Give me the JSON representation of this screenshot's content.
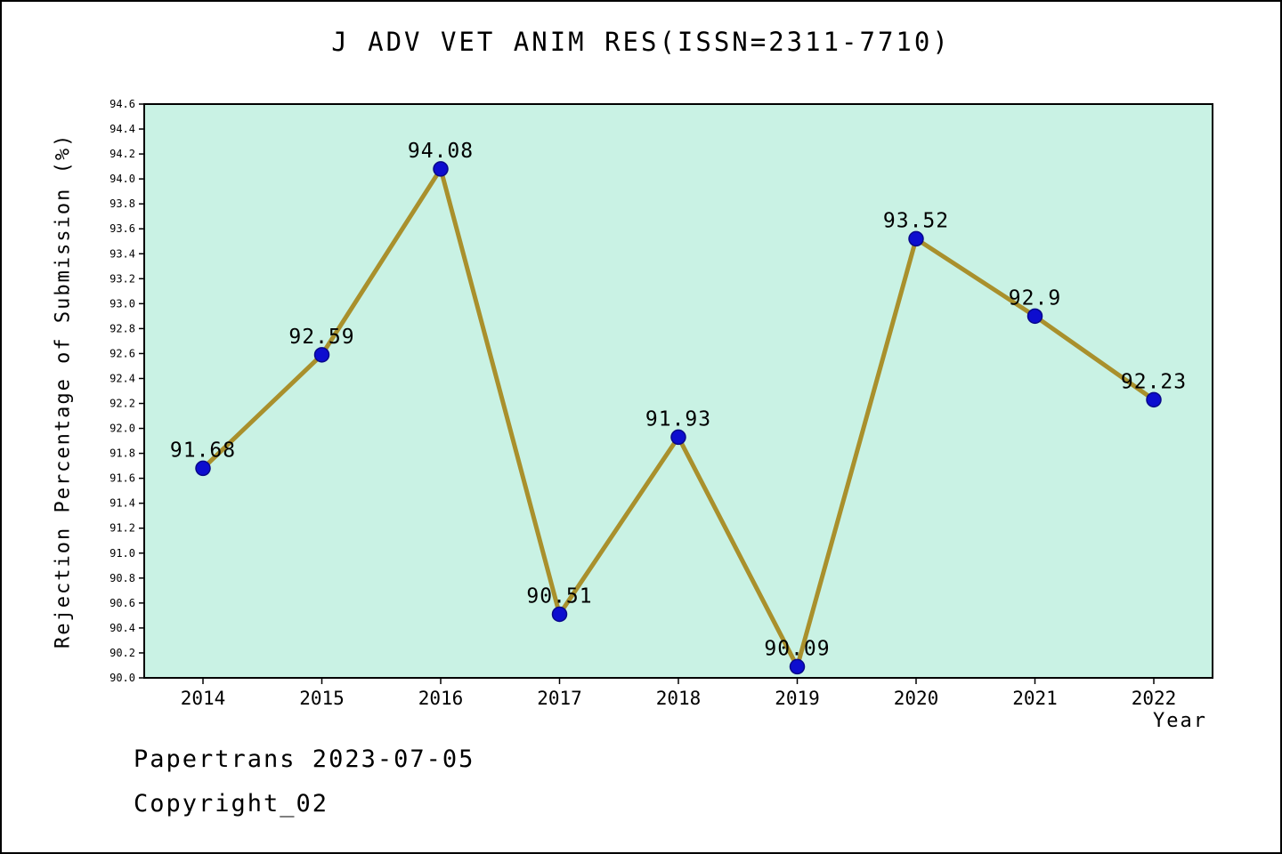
{
  "footer": {
    "line1": "Papertrans 2023-07-05",
    "line2": "Copyright_02"
  },
  "chart_data": {
    "type": "line",
    "title": "J ADV VET ANIM RES(ISSN=2311-7710)",
    "xlabel": "Year",
    "ylabel": "Rejection Percentage of Submission (%)",
    "categories": [
      "2014",
      "2015",
      "2016",
      "2017",
      "2018",
      "2019",
      "2020",
      "2021",
      "2022"
    ],
    "values": [
      91.68,
      92.59,
      94.08,
      90.51,
      91.93,
      90.09,
      93.52,
      92.9,
      92.23
    ],
    "point_labels": [
      "91.68",
      "92.59",
      "94.08",
      "90.51",
      "91.93",
      "90.09",
      "93.52",
      "92.9",
      "92.23"
    ],
    "ylim": [
      90.0,
      94.6
    ],
    "ytick_step": 0.2,
    "grid": false,
    "legend": "none",
    "colors": {
      "line": "#a9902c",
      "marker": "#0d0dcf",
      "marker_edge": "#08088a",
      "plot_bg": "#c9f2e4",
      "axis": "#000000"
    }
  }
}
